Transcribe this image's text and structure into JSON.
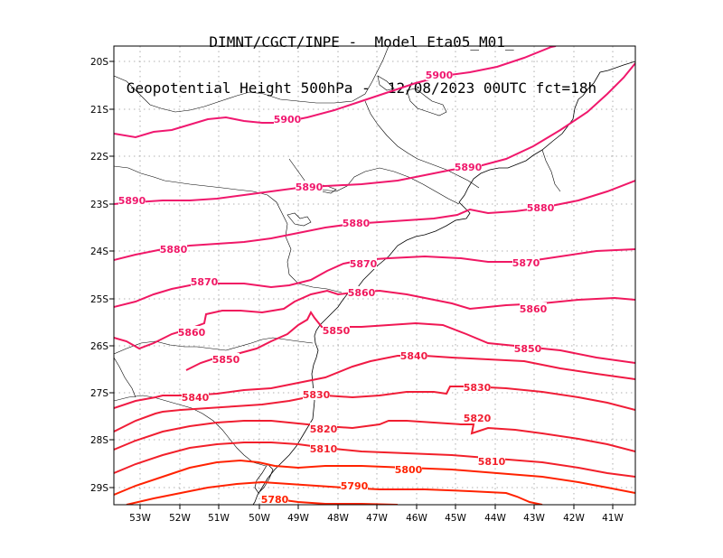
{
  "title": {
    "line1": "DIMNT/CGCT/INPE -  Model Eta05_M01_",
    "line2": "Geopotential Height 500hPa -  12/08/2023 00UTC fct=18h"
  },
  "axes": {
    "lon_labels": [
      "53W",
      "52W",
      "51W",
      "50W",
      "49W",
      "48W",
      "47W",
      "46W",
      "45W",
      "44W",
      "43W",
      "42W",
      "41W"
    ],
    "lat_labels": [
      "20S",
      "21S",
      "22S",
      "23S",
      "24S",
      "25S",
      "26S",
      "27S",
      "28S",
      "29S"
    ]
  },
  "map": {
    "variable": "Geopotential Height",
    "level": "500hPa",
    "grid": "dotted",
    "contour_interval": 10,
    "contours": [
      {
        "value": 5780,
        "color": "#ff2000",
        "labels": [
          "5780"
        ]
      },
      {
        "value": 5790,
        "color": "#ff2200",
        "labels": [
          "5790"
        ]
      },
      {
        "value": 5800,
        "color": "#ff2200",
        "labels": [
          "5800"
        ]
      },
      {
        "value": 5810,
        "color": "#f2202a",
        "labels": [
          "5810",
          "5810"
        ]
      },
      {
        "value": 5820,
        "color": "#f01e30",
        "labels": [
          "5820",
          "5820"
        ]
      },
      {
        "value": 5830,
        "color": "#f01e38",
        "labels": [
          "5830",
          "5830"
        ]
      },
      {
        "value": 5840,
        "color": "#f01a44",
        "labels": [
          "5840",
          "5840"
        ]
      },
      {
        "value": 5850,
        "color": "#f01854",
        "labels": [
          "5850",
          "5850",
          "5850"
        ]
      },
      {
        "value": 5860,
        "color": "#f0185c",
        "labels": [
          "5860",
          "5860",
          "5860"
        ]
      },
      {
        "value": 5870,
        "color": "#f01864",
        "labels": [
          "5870",
          "5870",
          "5870"
        ]
      },
      {
        "value": 5880,
        "color": "#f01868",
        "labels": [
          "5880",
          "5880",
          "5880"
        ]
      },
      {
        "value": 5890,
        "color": "#f0186c",
        "labels": [
          "5890",
          "5890",
          "5890"
        ]
      },
      {
        "value": 5900,
        "color": "#f01870",
        "labels": [
          "5900",
          "5900"
        ]
      }
    ]
  }
}
